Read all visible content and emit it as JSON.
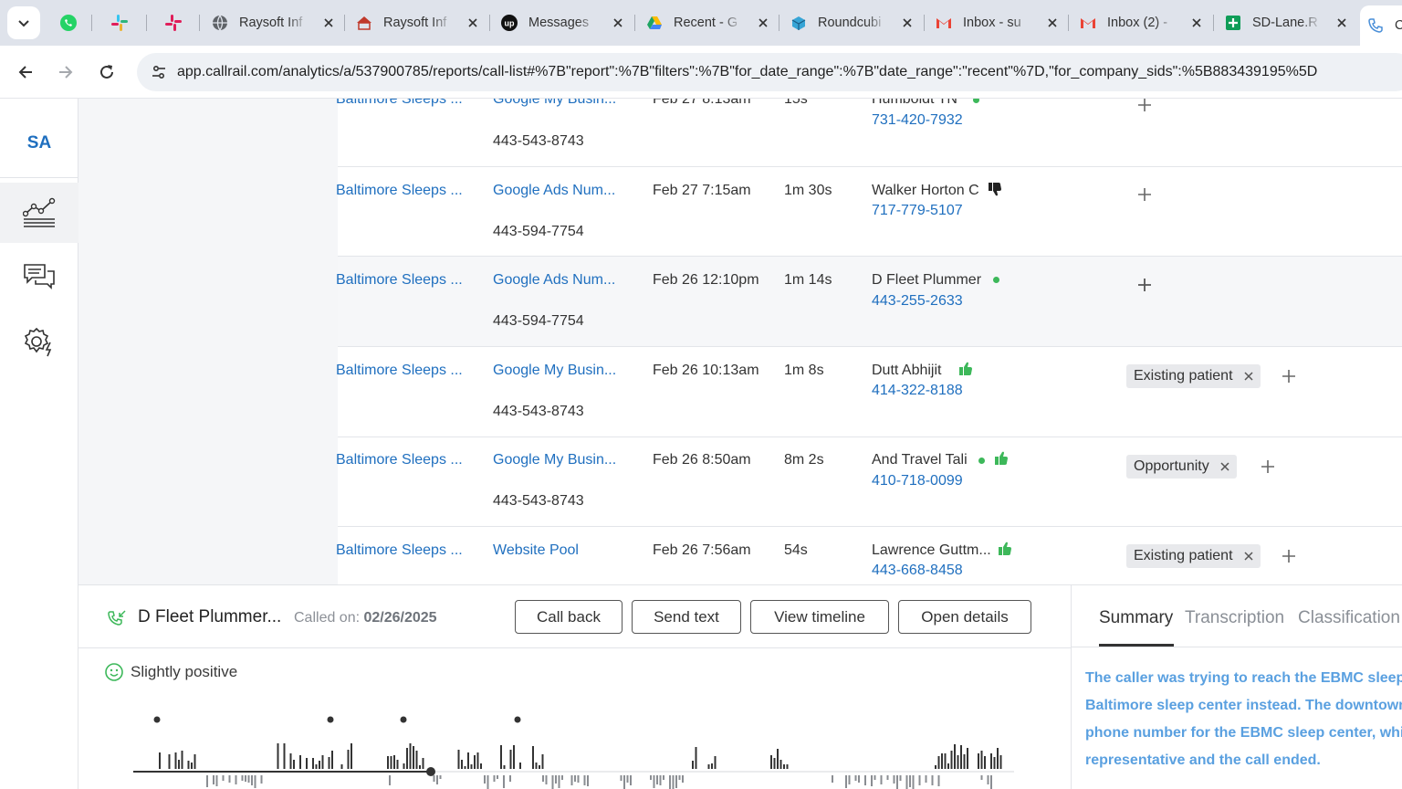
{
  "browser": {
    "tabs": [
      {
        "title": "Raysoft Inf",
        "favicon": "globe-icon"
      },
      {
        "title": "Raysoft Inf",
        "favicon": "raysoft-icon"
      },
      {
        "title": "Messages",
        "favicon": "upwork-icon"
      },
      {
        "title": "Recent - G",
        "favicon": "google-drive-icon"
      },
      {
        "title": "Roundcubi",
        "favicon": "roundcube-icon"
      },
      {
        "title": "Inbox - su",
        "favicon": "gmail-icon"
      },
      {
        "title": "Inbox (2) -",
        "favicon": "gmail-icon"
      },
      {
        "title": "SD-Lane.R",
        "favicon": "google-sheets-icon"
      },
      {
        "title": "C",
        "favicon": "callrail-icon"
      }
    ],
    "url": "app.callrail.com/analytics/a/537900785/reports/call-list#%7B\"report\":%7B\"filters\":%7B\"for_date_range\":%7B\"date_range\":\"recent\"%7D,\"for_company_sids\":%5B883439195%5D"
  },
  "app": {
    "company_initials": "SA",
    "nav": [
      "analytics-icon",
      "conversations-icon",
      "settings-icon"
    ]
  },
  "calls": [
    {
      "company": "Baltimore Sleeps ...",
      "source": "Google My Busin...",
      "tracking_number": "443-543-8743",
      "date": "Feb 27 8:13am",
      "duration": "15s",
      "caller": "Humboldt TN",
      "caller_phone": "731-420-7932",
      "tags": []
    },
    {
      "company": "Baltimore Sleeps ...",
      "source": "Google Ads Num...",
      "tracking_number": "443-594-7754",
      "date": "Feb 27 7:15am",
      "duration": "1m 30s",
      "caller": "Walker Horton C",
      "caller_phone": "717-779-5107",
      "tags": []
    },
    {
      "company": "Baltimore Sleeps ...",
      "source": "Google Ads Num...",
      "tracking_number": "443-594-7754",
      "date": "Feb 26 12:10pm",
      "duration": "1m 14s",
      "caller": "D Fleet Plummer",
      "caller_phone": "443-255-2633",
      "tags": []
    },
    {
      "company": "Baltimore Sleeps ...",
      "source": "Google My Busin...",
      "tracking_number": "443-543-8743",
      "date": "Feb 26 10:13am",
      "duration": "1m 8s",
      "caller": "Dutt Abhijit",
      "caller_phone": "414-322-8188",
      "tags": [
        "Existing patient"
      ]
    },
    {
      "company": "Baltimore Sleeps ...",
      "source": "Google My Busin...",
      "tracking_number": "443-543-8743",
      "date": "Feb 26 8:50am",
      "duration": "8m 2s",
      "caller": "And Travel Tali",
      "caller_phone": "410-718-0099",
      "tags": [
        "Opportunity"
      ]
    },
    {
      "company": "Baltimore Sleeps ...",
      "source": "Website Pool",
      "tracking_number": "",
      "date": "Feb 26 7:56am",
      "duration": "54s",
      "caller": "Lawrence Guttm...",
      "caller_phone": "443-668-8458",
      "tags": [
        "Existing patient"
      ]
    }
  ],
  "panel": {
    "caller": "D Fleet Plummer...",
    "called_on_label": "Called on:",
    "called_on_date": "02/26/2025",
    "buttons": {
      "call_back": "Call back",
      "send_text": "Send text",
      "view_timeline": "View timeline",
      "open_details": "Open details"
    },
    "sentiment": "Slightly positive",
    "tabs": {
      "summary": "Summary",
      "transcription": "Transcription",
      "classification": "Classification"
    },
    "summary_lines": [
      "The caller was trying to reach the EBMC sleep c",
      "Baltimore sleep center instead. The downtown",
      "phone number for the EBMC sleep center, whic",
      "representative and the call ended."
    ]
  },
  "colors": {
    "link": "#1f6fbf",
    "positive": "#3db85a",
    "summary": "#5aa0e0",
    "tag_bg": "#e8e9ec"
  }
}
